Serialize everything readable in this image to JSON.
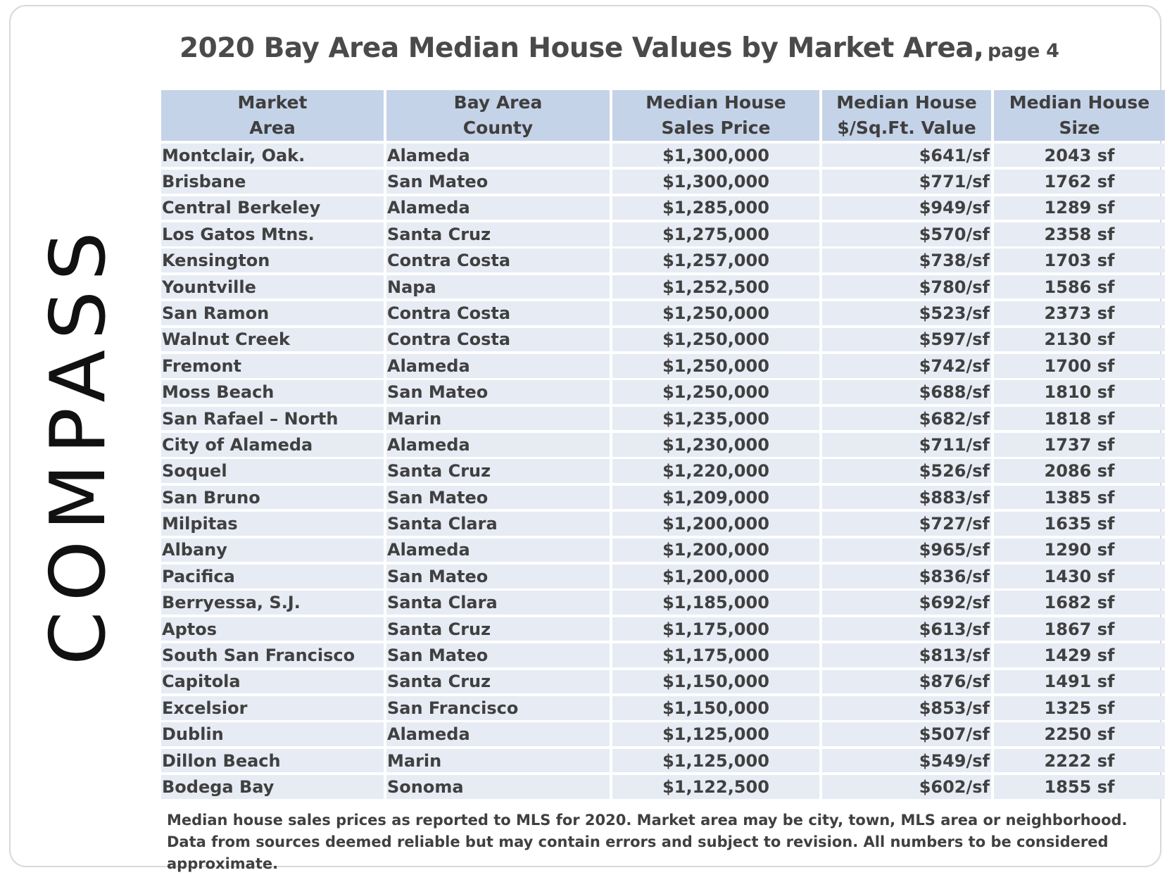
{
  "title": {
    "main": "2020 Bay Area Median House Values by Market Area,",
    "sub": "page 4"
  },
  "logo": {
    "text": "COMPASS"
  },
  "chart_data": {
    "type": "table",
    "columns": [
      "Market\nArea",
      "Bay Area\nCounty",
      "Median House\nSales Price",
      "Median House\n$/Sq.Ft. Value",
      "Median House\nSize"
    ],
    "rows": [
      [
        "Montclair, Oak.",
        "Alameda",
        "$1,300,000",
        "$641/sf",
        "2043 sf"
      ],
      [
        "Brisbane",
        "San Mateo",
        "$1,300,000",
        "$771/sf",
        "1762 sf"
      ],
      [
        "Central Berkeley",
        "Alameda",
        "$1,285,000",
        "$949/sf",
        "1289 sf"
      ],
      [
        "Los Gatos Mtns.",
        "Santa Cruz",
        "$1,275,000",
        "$570/sf",
        "2358 sf"
      ],
      [
        "Kensington",
        "Contra Costa",
        "$1,257,000",
        "$738/sf",
        "1703 sf"
      ],
      [
        "Yountville",
        "Napa",
        "$1,252,500",
        "$780/sf",
        "1586 sf"
      ],
      [
        "San Ramon",
        "Contra Costa",
        "$1,250,000",
        "$523/sf",
        "2373 sf"
      ],
      [
        "Walnut Creek",
        "Contra Costa",
        "$1,250,000",
        "$597/sf",
        "2130 sf"
      ],
      [
        "Fremont",
        "Alameda",
        "$1,250,000",
        "$742/sf",
        "1700 sf"
      ],
      [
        "Moss Beach",
        "San Mateo",
        "$1,250,000",
        "$688/sf",
        "1810 sf"
      ],
      [
        "San Rafael – North",
        "Marin",
        "$1,235,000",
        "$682/sf",
        "1818 sf"
      ],
      [
        "City of Alameda",
        "Alameda",
        "$1,230,000",
        "$711/sf",
        "1737 sf"
      ],
      [
        "Soquel",
        "Santa Cruz",
        "$1,220,000",
        "$526/sf",
        "2086 sf"
      ],
      [
        "San Bruno",
        "San Mateo",
        "$1,209,000",
        "$883/sf",
        "1385 sf"
      ],
      [
        "Milpitas",
        "Santa Clara",
        "$1,200,000",
        "$727/sf",
        "1635 sf"
      ],
      [
        "Albany",
        "Alameda",
        "$1,200,000",
        "$965/sf",
        "1290 sf"
      ],
      [
        "Pacifica",
        "San Mateo",
        "$1,200,000",
        "$836/sf",
        "1430 sf"
      ],
      [
        "Berryessa, S.J.",
        "Santa Clara",
        "$1,185,000",
        "$692/sf",
        "1682 sf"
      ],
      [
        "Aptos",
        "Santa Cruz",
        "$1,175,000",
        "$613/sf",
        "1867 sf"
      ],
      [
        "South San Francisco",
        "San Mateo",
        "$1,175,000",
        "$813/sf",
        "1429 sf"
      ],
      [
        "Capitola",
        "Santa Cruz",
        "$1,150,000",
        "$876/sf",
        "1491 sf"
      ],
      [
        "Excelsior",
        "San Francisco",
        "$1,150,000",
        "$853/sf",
        "1325 sf"
      ],
      [
        "Dublin",
        "Alameda",
        "$1,125,000",
        "$507/sf",
        "2250 sf"
      ],
      [
        "Dillon Beach",
        "Marin",
        "$1,125,000",
        "$549/sf",
        "2222 sf"
      ],
      [
        "Bodega Bay",
        "Sonoma",
        "$1,122,500",
        "$602/sf",
        "1855 sf"
      ]
    ]
  },
  "footnote": "Median house sales prices as reported to MLS for 2020. Market area may be city, town, MLS area or neighborhood. Data from sources deemed reliable but may contain errors and subject to revision. All numbers to be considered approximate.",
  "colors": {
    "header_bg": "#c5d3e8",
    "row_bg": "#e6ebf4",
    "text": "#404040",
    "border": "#d9d9d9"
  }
}
